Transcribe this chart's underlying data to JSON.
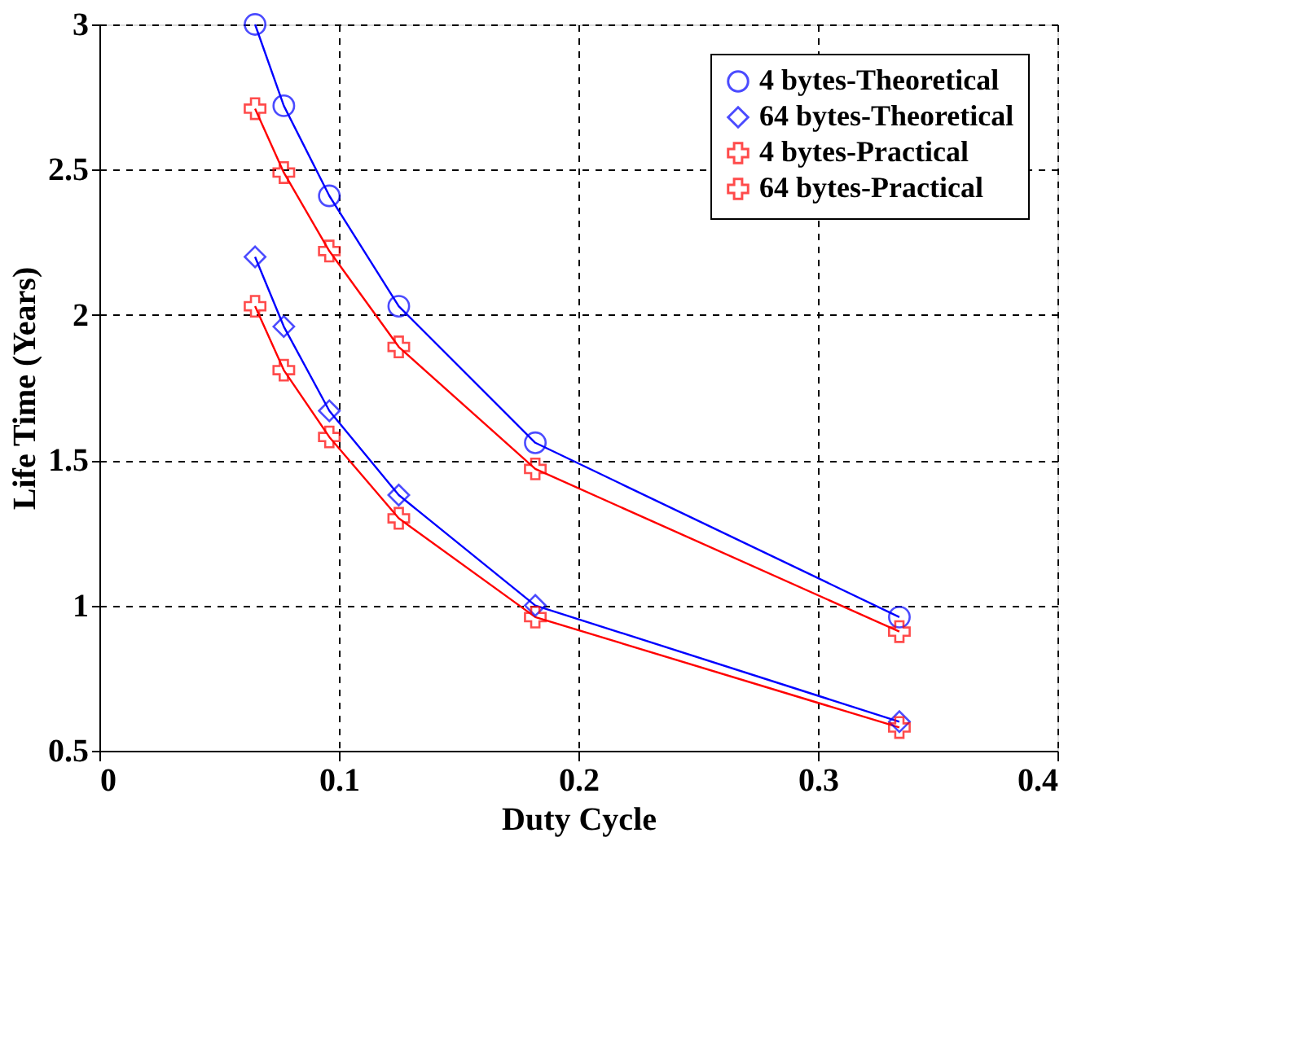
{
  "chart_data": {
    "type": "line",
    "xlabel": "Duty Cycle",
    "ylabel": "Life Time (Years)",
    "xlim": [
      0,
      0.4
    ],
    "xticks": [
      0,
      0.1,
      0.2,
      0.3,
      0.4
    ],
    "ylim": [
      0.5,
      3
    ],
    "yticks": [
      0.5,
      1,
      1.5,
      2,
      2.5,
      3
    ],
    "grid": true,
    "legend": "top right",
    "line_style": "solid",
    "x": [
      0.065,
      0.077,
      0.096,
      0.125,
      0.182,
      0.334
    ],
    "series": [
      {
        "name": "4 bytes-Theoretical",
        "color": "#0000ff",
        "marker": "circle",
        "values": [
          3.0,
          2.72,
          2.41,
          2.03,
          1.56,
          0.96
        ]
      },
      {
        "name": "64 bytes-Theoretical",
        "color": "#0000ff",
        "marker": "diamond",
        "values": [
          2.2,
          1.96,
          1.67,
          1.38,
          1.0,
          0.6
        ]
      },
      {
        "name": "4 bytes-Practical",
        "color": "#ff0000",
        "marker": "cross",
        "values": [
          2.71,
          2.49,
          2.22,
          1.89,
          1.47,
          0.91
        ]
      },
      {
        "name": "64 bytes-Practical",
        "color": "#ff0000",
        "marker": "cross",
        "values": [
          2.03,
          1.81,
          1.58,
          1.3,
          0.96,
          0.58
        ]
      }
    ]
  }
}
